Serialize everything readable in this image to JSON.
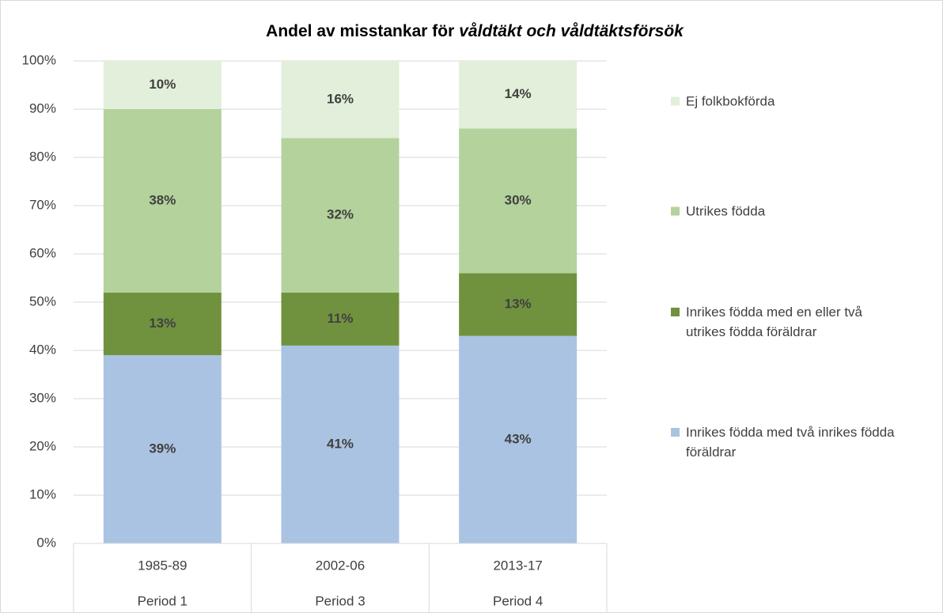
{
  "chart_data": {
    "type": "stacked_bar",
    "title": [
      "Andel av misstankar för",
      "våldtäkt och våldtäktsförsök"
    ],
    "categories": [
      "1985-89",
      "2002-06",
      "2013-17"
    ],
    "periods": [
      "Period 1",
      "Period 3",
      "Period 4"
    ],
    "series": [
      {
        "name": "Inrikes födda med två inrikes födda föräldrar",
        "color": "#abc3e2",
        "values": [
          39,
          41,
          43
        ],
        "value_labels": [
          "39%",
          "41%",
          "43%"
        ]
      },
      {
        "name": "Inrikes födda med en eller två utrikes födda föräldrar",
        "color": "#70923f",
        "values": [
          13,
          11,
          13
        ],
        "value_labels": [
          "13%",
          "11%",
          "13%"
        ]
      },
      {
        "name": "Utrikes födda",
        "color": "#b3d29c",
        "values": [
          38,
          32,
          30
        ],
        "value_labels": [
          "38%",
          "32%",
          "30%"
        ]
      },
      {
        "name": "Ej folkbokförda",
        "color": "#e2efda",
        "values": [
          10,
          16,
          14
        ],
        "value_labels": [
          "10%",
          "16%",
          "14%"
        ]
      }
    ],
    "ylim": [
      0,
      100
    ],
    "yticks": [
      {
        "value": 0,
        "label": "0%"
      },
      {
        "value": 10,
        "label": "10%"
      },
      {
        "value": 20,
        "label": "20%"
      },
      {
        "value": 30,
        "label": "30%"
      },
      {
        "value": 40,
        "label": "40%"
      },
      {
        "value": 50,
        "label": "50%"
      },
      {
        "value": 60,
        "label": "60%"
      },
      {
        "value": 70,
        "label": "70%"
      },
      {
        "value": 80,
        "label": "80%"
      },
      {
        "value": 90,
        "label": "90%"
      },
      {
        "value": 100,
        "label": "100%"
      }
    ],
    "grid": true,
    "legend": "right"
  }
}
